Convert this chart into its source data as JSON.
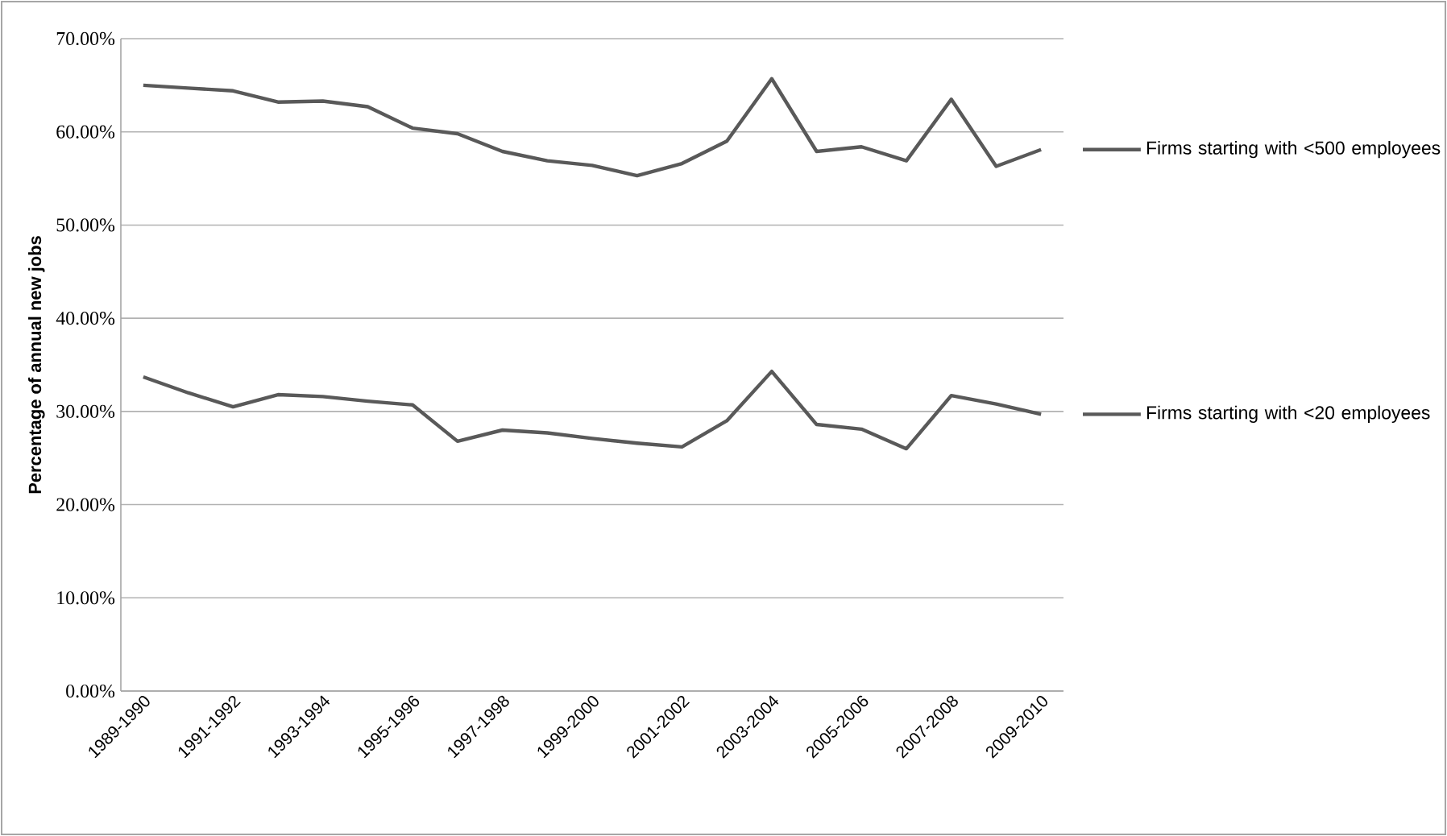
{
  "chart_data": {
    "type": "line",
    "ylabel": "Percentage of annual new jobs",
    "categories": [
      "1989-1990",
      null,
      "1991-1992",
      null,
      "1993-1994",
      null,
      "1995-1996",
      null,
      "1997-1998",
      null,
      "1999-2000",
      null,
      "2001-2002",
      null,
      "2003-2004",
      null,
      "2005-2006",
      null,
      "2007-2008",
      null,
      "2009-2010"
    ],
    "series": [
      {
        "name": "Firms starting with <500 employees",
        "color": "#595959",
        "values": [
          65.0,
          64.7,
          64.4,
          63.2,
          63.3,
          62.7,
          60.4,
          59.8,
          57.9,
          56.9,
          56.4,
          55.3,
          56.6,
          59.0,
          65.7,
          57.9,
          58.4,
          56.9,
          63.5,
          56.3,
          58.1
        ]
      },
      {
        "name": "Firms starting with <20 employees",
        "color": "#595959",
        "values": [
          33.7,
          32.0,
          30.5,
          31.8,
          31.6,
          31.1,
          30.7,
          26.8,
          28.0,
          27.7,
          27.1,
          26.6,
          26.2,
          29.0,
          34.3,
          28.6,
          28.1,
          26.0,
          31.7,
          30.8,
          29.7
        ]
      }
    ],
    "ylim": [
      0,
      70
    ],
    "yticks": [
      {
        "value": 0,
        "label": "0.00%"
      },
      {
        "value": 10,
        "label": "10.00%"
      },
      {
        "value": 20,
        "label": "20.00%"
      },
      {
        "value": 30,
        "label": "30.00%"
      },
      {
        "value": 40,
        "label": "40.00%"
      },
      {
        "value": 50,
        "label": "50.00%"
      },
      {
        "value": 60,
        "label": "60.00%"
      },
      {
        "value": 70,
        "label": "70.00%"
      }
    ],
    "grid": "y",
    "legend": "right",
    "marker": "none",
    "line_style": "solid"
  }
}
